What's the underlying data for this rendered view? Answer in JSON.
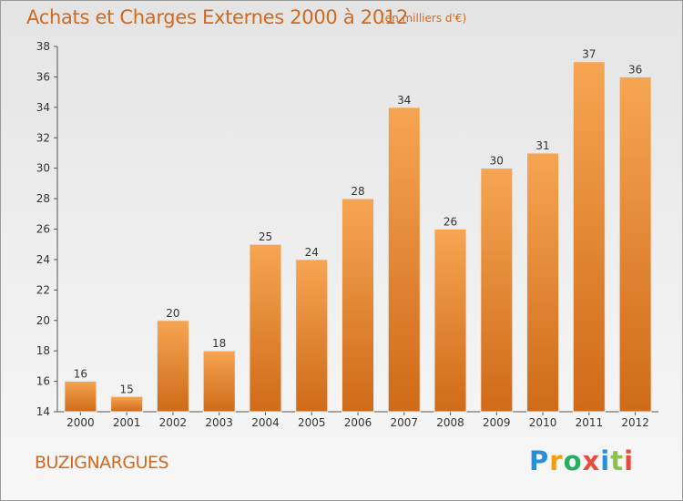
{
  "title": "Achats et Charges Externes 2000 à 2012",
  "unit_note": "(en milliers d'€)",
  "commune": "BUZIGNARGUES",
  "logo": {
    "text": "Proxiti",
    "letters": [
      {
        "char": "P",
        "color": "#2b8fd6"
      },
      {
        "char": "r",
        "color": "#f39c12"
      },
      {
        "char": "o",
        "color": "#27ae60"
      },
      {
        "char": "x",
        "color": "#e74c3c"
      },
      {
        "char": "i",
        "color": "#2b8fd6"
      },
      {
        "char": "t",
        "color": "#8bc34a"
      },
      {
        "char": "i",
        "color": "#e74c3c"
      }
    ]
  },
  "colors": {
    "title": "#d2691e",
    "bar_top": "#f6a552",
    "bar_bottom": "#cf6a18",
    "bar_stroke": "#e8e8e8"
  },
  "chart_data": {
    "type": "bar",
    "categories": [
      "2000",
      "2001",
      "2002",
      "2003",
      "2004",
      "2005",
      "2006",
      "2007",
      "2008",
      "2009",
      "2010",
      "2011",
      "2012"
    ],
    "values": [
      16,
      15,
      20,
      18,
      25,
      24,
      28,
      34,
      26,
      30,
      31,
      37,
      36
    ],
    "ylim": [
      14,
      38
    ],
    "yticks": [
      14,
      16,
      18,
      20,
      22,
      24,
      26,
      28,
      30,
      32,
      34,
      36,
      38
    ],
    "grid": false,
    "legend": "none",
    "title": "Achats et Charges Externes 2000 à 2012",
    "xlabel": "",
    "ylabel": ""
  }
}
